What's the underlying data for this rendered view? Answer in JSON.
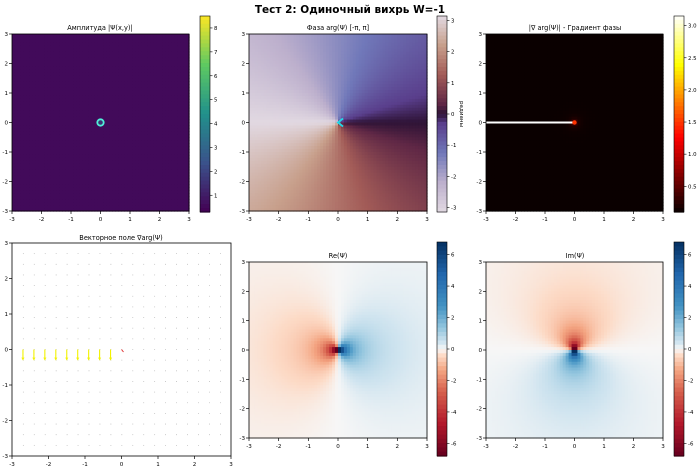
{
  "figure": {
    "suptitle": "Тест 2: Одиночный вихрь W=-1"
  },
  "chart_data": [
    {
      "id": "amplitude",
      "type": "heatmap",
      "title": "Амплитуда |Ψ(x,y)|",
      "x_ticks": [
        -3,
        -2,
        -1,
        0,
        1,
        2,
        3
      ],
      "y_ticks": [
        -3,
        -2,
        -1,
        0,
        1,
        2,
        3
      ],
      "xlim": [
        -3,
        3
      ],
      "ylim": [
        -3,
        3
      ],
      "colormap": "viridis",
      "colorbar": {
        "ticks": [
          1,
          2,
          3,
          4,
          5,
          6,
          7,
          8
        ],
        "range": [
          0.3,
          8.5
        ],
        "label": ""
      },
      "features": [
        {
          "kind": "ring",
          "x": 0,
          "y": 0
        }
      ]
    },
    {
      "id": "phase",
      "type": "heatmap",
      "title": "Фаза arg(Ψ) [-π, π]",
      "x_ticks": [
        -3,
        -2,
        -1,
        0,
        1,
        2,
        3
      ],
      "y_ticks": [
        -3,
        -2,
        -1,
        0,
        1,
        2,
        3
      ],
      "xlim": [
        -3,
        3
      ],
      "ylim": [
        -3,
        3
      ],
      "colormap": "twilight",
      "colorbar": {
        "ticks": [
          -3,
          -2,
          -1,
          0,
          1,
          2,
          3
        ],
        "range": [
          -3.1416,
          3.1416
        ],
        "label": "радианы"
      },
      "features": [
        {
          "kind": "chevron",
          "x": 0,
          "y": 0
        }
      ]
    },
    {
      "id": "phase-gradient",
      "type": "heatmap",
      "title": "|∇ arg(Ψ)| - Градиент фазы",
      "x_ticks": [
        -3,
        -2,
        -1,
        0,
        1,
        2,
        3
      ],
      "y_ticks": [
        -3,
        -2,
        -1,
        0,
        1,
        2,
        3
      ],
      "xlim": [
        -3,
        3
      ],
      "ylim": [
        -3,
        3
      ],
      "colormap": "hot",
      "colorbar": {
        "ticks": [
          0.5,
          1.0,
          1.5,
          2.0,
          2.5,
          3.0
        ],
        "range": [
          0.1,
          3.15
        ],
        "label": ""
      },
      "features": [
        {
          "kind": "branch-cut",
          "x_from": -3,
          "x_to": 0,
          "y": 0
        }
      ]
    },
    {
      "id": "vector-field",
      "type": "scatter",
      "title": "Векторное поле ∇arg(Ψ)",
      "x_ticks": [
        -3,
        -2,
        -1,
        0,
        1,
        2,
        3
      ],
      "y_ticks": [
        -3,
        -2,
        -1,
        0,
        1,
        2,
        3
      ],
      "xlim": [
        -3,
        3
      ],
      "ylim": [
        -3,
        3
      ],
      "grid_step": 0.3,
      "strong_arrows": {
        "y": 0,
        "x_from": -2.7,
        "x_to": -0.3,
        "dy": -0.3,
        "color": "#f2f200"
      }
    },
    {
      "id": "real-part",
      "type": "heatmap",
      "title": "Re(Ψ)",
      "x_ticks": [
        -3,
        -2,
        -1,
        0,
        1,
        2,
        3
      ],
      "y_ticks": [
        -3,
        -2,
        -1,
        0,
        1,
        2,
        3
      ],
      "xlim": [
        -3,
        3
      ],
      "ylim": [
        -3,
        3
      ],
      "colormap": "RdBu",
      "colorbar": {
        "ticks": [
          -6,
          -4,
          -2,
          0,
          2,
          4,
          6
        ],
        "range": [
          -6.8,
          6.8
        ],
        "label": ""
      }
    },
    {
      "id": "imag-part",
      "type": "heatmap",
      "title": "Im(Ψ)",
      "x_ticks": [
        -3,
        -2,
        -1,
        0,
        1,
        2,
        3
      ],
      "y_ticks": [
        -3,
        -2,
        -1,
        0,
        1,
        2,
        3
      ],
      "xlim": [
        -3,
        3
      ],
      "ylim": [
        -3,
        3
      ],
      "colormap": "RdBu",
      "colorbar": {
        "ticks": [
          -6,
          -4,
          -2,
          0,
          2,
          4,
          6
        ],
        "range": [
          -6.8,
          6.8
        ],
        "label": ""
      }
    }
  ]
}
